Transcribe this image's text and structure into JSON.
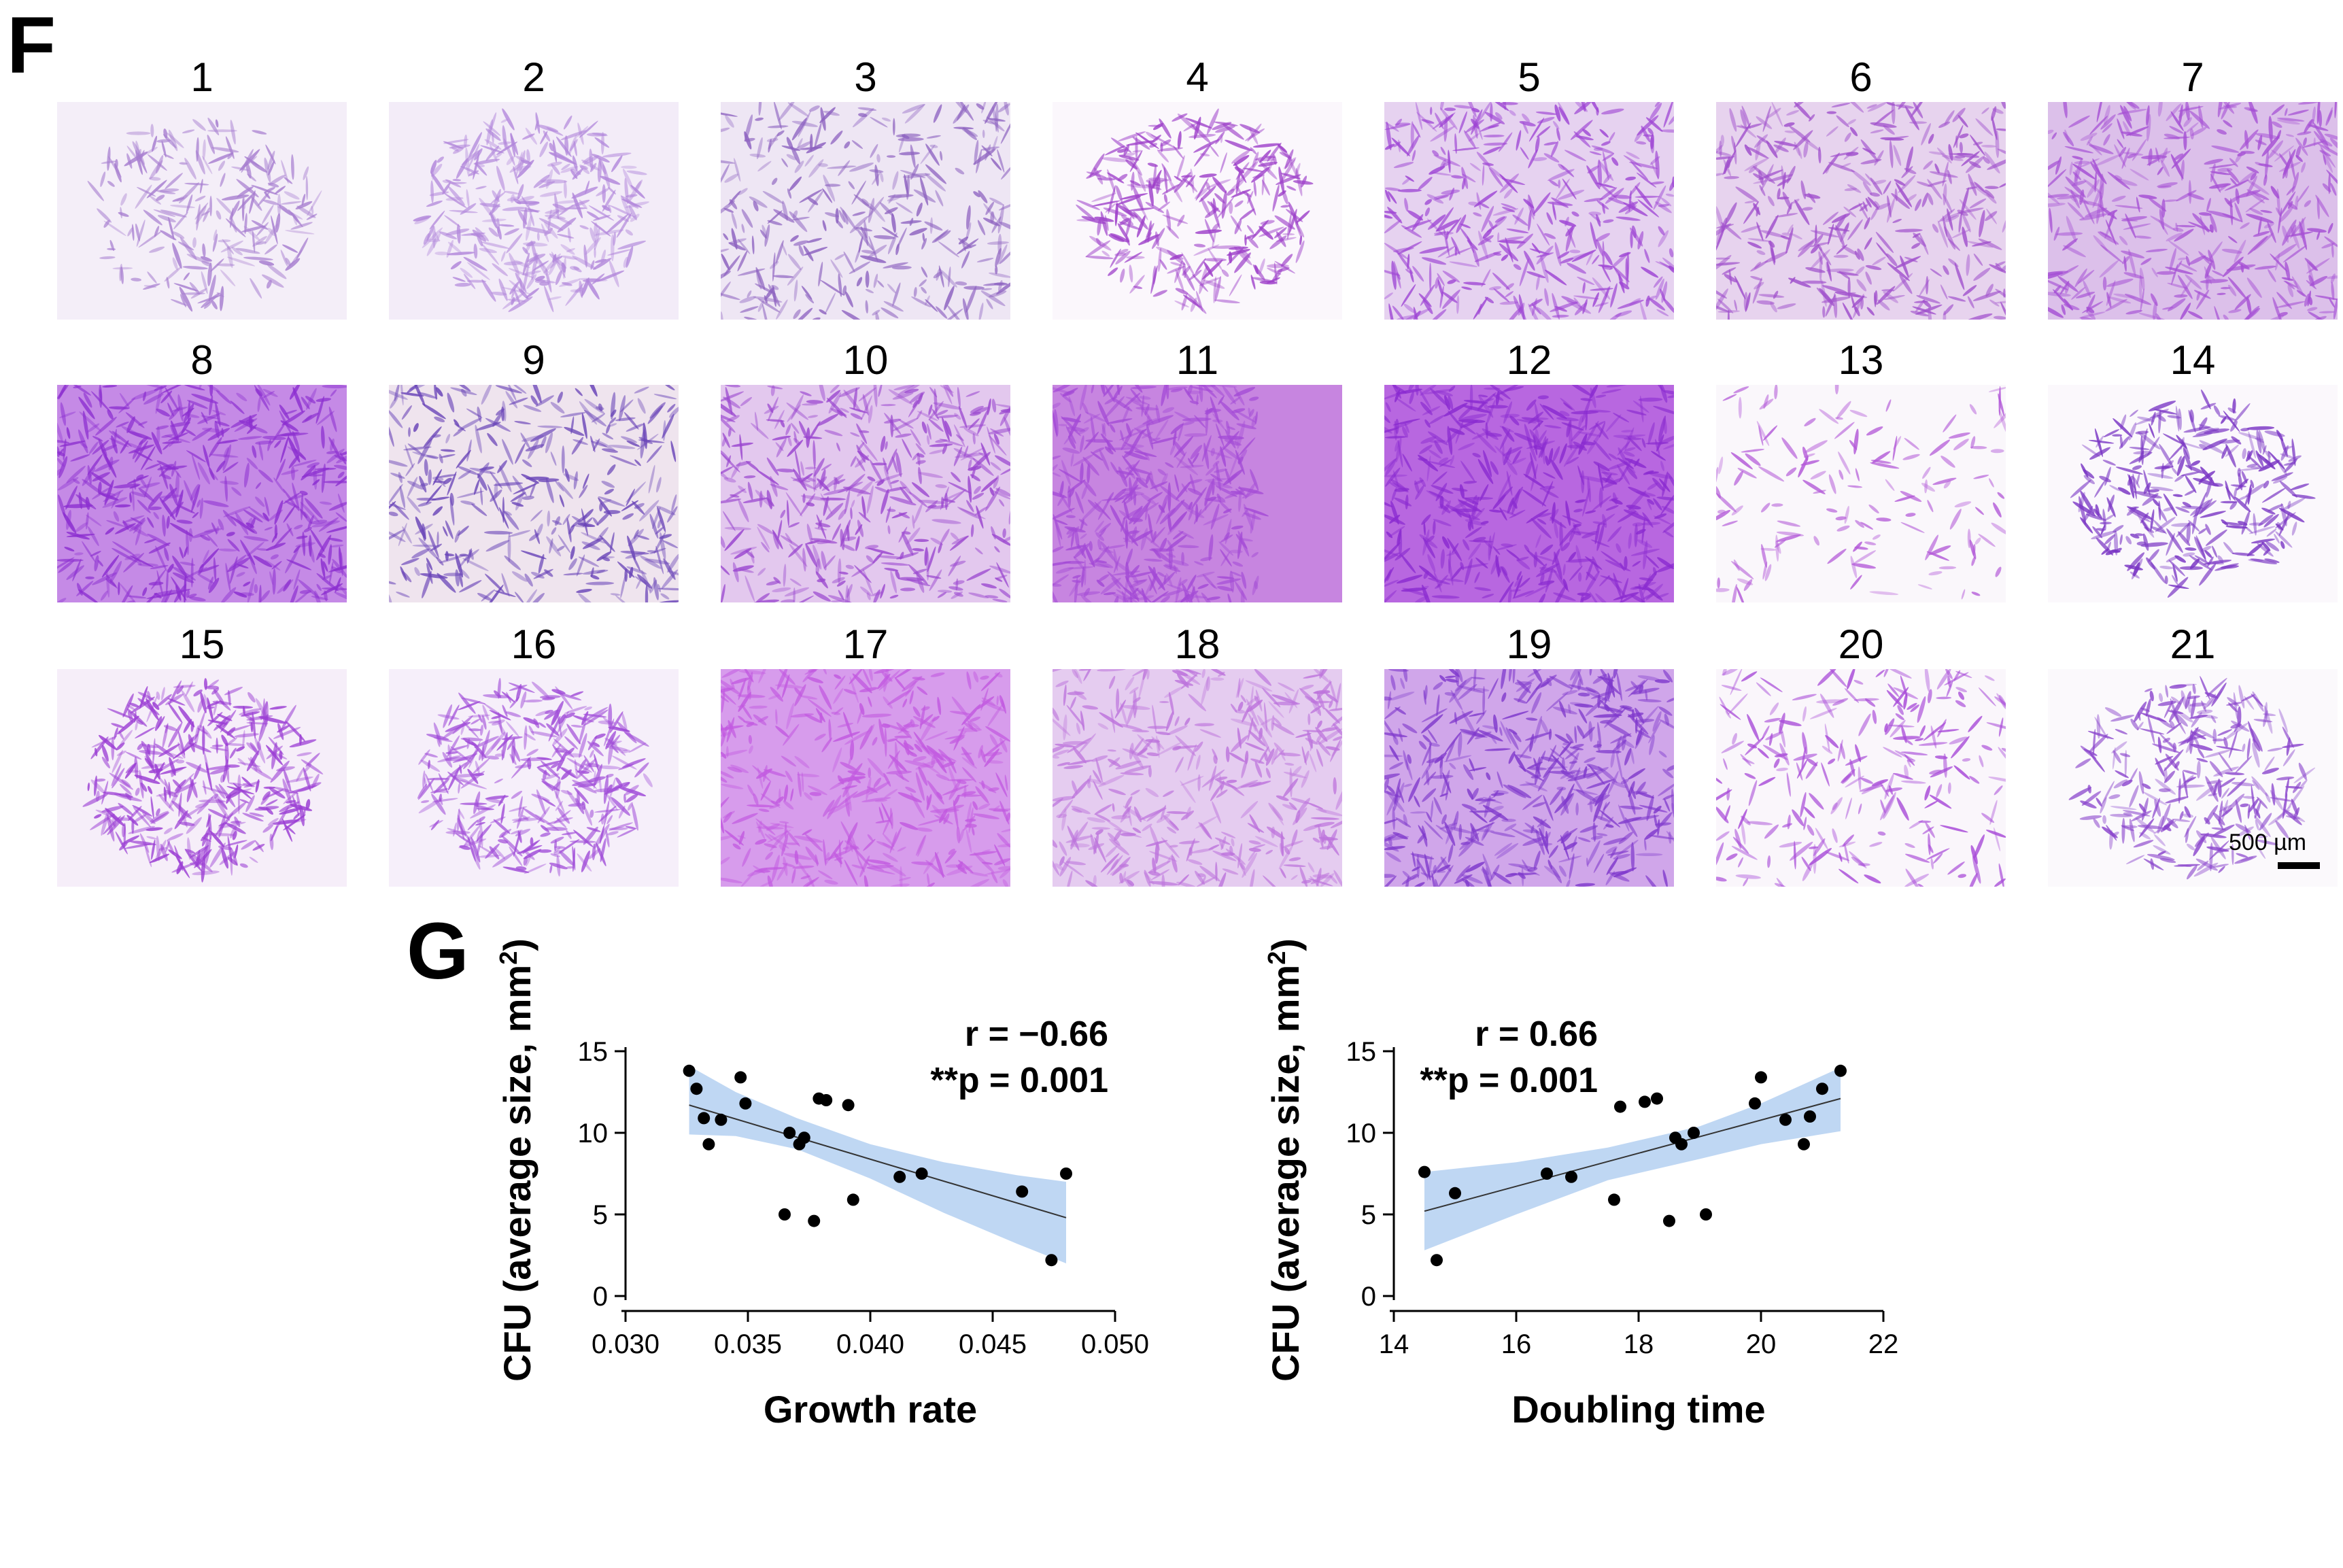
{
  "panel_f": {
    "letter": "F",
    "tiles": [
      {
        "label": "1",
        "bg": "#f4eef8",
        "color": "#a77ed0",
        "density": 0.35,
        "spread": "center"
      },
      {
        "label": "2",
        "bg": "#f3ecf8",
        "color": "#b287db",
        "density": 0.6,
        "spread": "center"
      },
      {
        "label": "3",
        "bg": "#eee6f4",
        "color": "#8d62c0",
        "density": 0.6,
        "spread": "full"
      },
      {
        "label": "4",
        "bg": "#fbf7fc",
        "color": "#9d3fc9",
        "density": 0.55,
        "spread": "center"
      },
      {
        "label": "5",
        "bg": "#e6d2f0",
        "color": "#9e45d4",
        "density": 0.8,
        "spread": "full"
      },
      {
        "label": "6",
        "bg": "#e7d3ee",
        "color": "#a050cc",
        "density": 0.75,
        "spread": "full"
      },
      {
        "label": "7",
        "bg": "#dcc0ea",
        "color": "#a54fd4",
        "density": 0.85,
        "spread": "full"
      },
      {
        "label": "8",
        "bg": "#c58ae6",
        "color": "#8c2fd0",
        "density": 1.0,
        "spread": "full"
      },
      {
        "label": "9",
        "bg": "#efe4ee",
        "color": "#6a45b8",
        "density": 0.7,
        "spread": "full"
      },
      {
        "label": "10",
        "bg": "#e3c8ee",
        "color": "#9a46cf",
        "density": 0.85,
        "spread": "full"
      },
      {
        "label": "11",
        "bg": "#c785e0",
        "color": "#a34ad6",
        "density": 0.9,
        "spread": "left"
      },
      {
        "label": "12",
        "bg": "#b867e0",
        "color": "#8a2bd0",
        "density": 1.0,
        "spread": "full"
      },
      {
        "label": "13",
        "bg": "#faf7fb",
        "color": "#b35ad8",
        "density": 0.15,
        "spread": "sparse"
      },
      {
        "label": "14",
        "bg": "#fbf8fc",
        "color": "#7a36c4",
        "density": 0.55,
        "spread": "center"
      },
      {
        "label": "15",
        "bg": "#f6eef9",
        "color": "#9b3ed4",
        "density": 0.75,
        "spread": "center"
      },
      {
        "label": "16",
        "bg": "#f6effa",
        "color": "#a04cd8",
        "density": 0.7,
        "spread": "center"
      },
      {
        "label": "17",
        "bg": "#d79cec",
        "color": "#c25ae0",
        "density": 0.85,
        "spread": "full"
      },
      {
        "label": "18",
        "bg": "#e5ccf0",
        "color": "#bd74dc",
        "density": 0.8,
        "spread": "full"
      },
      {
        "label": "19",
        "bg": "#d0a6ea",
        "color": "#7f39cc",
        "density": 0.95,
        "spread": "full"
      },
      {
        "label": "20",
        "bg": "#faf6fb",
        "color": "#a84bd8",
        "density": 0.4,
        "spread": "sparse"
      },
      {
        "label": "21",
        "bg": "#fbf9fc",
        "color": "#8a45cc",
        "density": 0.5,
        "spread": "center"
      }
    ],
    "scale_bar": "500 µm"
  },
  "panel_g": {
    "letter": "G"
  },
  "chart_data": [
    {
      "type": "scatter",
      "title": "",
      "xlabel": "Growth rate",
      "ylabel": "CFU (average size, mm",
      "ylabel_sup": "2",
      "ylabel_close": ")",
      "xlim": [
        0.03,
        0.05
      ],
      "ylim": [
        0,
        15
      ],
      "xticks": [
        "0.030",
        "0.035",
        "0.040",
        "0.045",
        "0.050"
      ],
      "xtick_values": [
        0.03,
        0.035,
        0.04,
        0.045,
        0.05
      ],
      "yticks": [
        "0",
        "5",
        "10",
        "15"
      ],
      "ytick_values": [
        0,
        5,
        10,
        15
      ],
      "annotation_r": "r = −0.66",
      "annotation_p": "**p = 0.001",
      "fit": {
        "x0": 0.0326,
        "y0": 11.7,
        "x1": 0.048,
        "y1": 4.8
      },
      "band_upper": [
        [
          0.0326,
          14.1
        ],
        [
          0.0345,
          12.5
        ],
        [
          0.037,
          10.9
        ],
        [
          0.04,
          9.3
        ],
        [
          0.043,
          8.2
        ],
        [
          0.046,
          7.4
        ],
        [
          0.048,
          7.0
        ]
      ],
      "band_lower": [
        [
          0.0326,
          9.9
        ],
        [
          0.0345,
          9.8
        ],
        [
          0.037,
          9.0
        ],
        [
          0.04,
          7.2
        ],
        [
          0.043,
          5.1
        ],
        [
          0.046,
          3.2
        ],
        [
          0.048,
          2.0
        ]
      ],
      "points": [
        [
          0.0326,
          13.8
        ],
        [
          0.0329,
          12.7
        ],
        [
          0.0332,
          10.9
        ],
        [
          0.0334,
          9.3
        ],
        [
          0.0339,
          10.8
        ],
        [
          0.0347,
          13.4
        ],
        [
          0.0349,
          11.8
        ],
        [
          0.0365,
          5.0
        ],
        [
          0.0367,
          10.0
        ],
        [
          0.0371,
          9.3
        ],
        [
          0.0373,
          9.7
        ],
        [
          0.0377,
          4.6
        ],
        [
          0.0379,
          12.1
        ],
        [
          0.0382,
          12.0
        ],
        [
          0.0391,
          11.7
        ],
        [
          0.0393,
          5.9
        ],
        [
          0.0412,
          7.3
        ],
        [
          0.0421,
          7.5
        ],
        [
          0.0462,
          6.4
        ],
        [
          0.0474,
          2.2
        ],
        [
          0.048,
          7.5
        ]
      ],
      "color_band": "#b8d3f2",
      "color_points": "#000000"
    },
    {
      "type": "scatter",
      "title": "",
      "xlabel": "Doubling time",
      "ylabel": "CFU (average size, mm",
      "ylabel_sup": "2",
      "ylabel_close": ")",
      "xlim": [
        14,
        22
      ],
      "ylim": [
        0,
        15
      ],
      "xticks": [
        "14",
        "16",
        "18",
        "20",
        "22"
      ],
      "xtick_values": [
        14,
        16,
        18,
        20,
        22
      ],
      "yticks": [
        "0",
        "5",
        "10",
        "15"
      ],
      "ytick_values": [
        0,
        5,
        10,
        15
      ],
      "annotation_r": "r = 0.66",
      "annotation_p": "**p = 0.001",
      "fit": {
        "x0": 14.5,
        "y0": 5.2,
        "x1": 21.3,
        "y1": 12.1
      },
      "band_upper": [
        [
          14.5,
          7.6
        ],
        [
          16,
          8.2
        ],
        [
          17.5,
          9.1
        ],
        [
          19,
          10.4
        ],
        [
          20,
          11.8
        ],
        [
          21.3,
          14.0
        ]
      ],
      "band_lower": [
        [
          14.5,
          2.8
        ],
        [
          16,
          5.0
        ],
        [
          17.5,
          7.1
        ],
        [
          19,
          8.4
        ],
        [
          20,
          9.3
        ],
        [
          21.3,
          10.1
        ]
      ],
      "points": [
        [
          14.5,
          7.6
        ],
        [
          14.7,
          2.2
        ],
        [
          15.0,
          6.3
        ],
        [
          16.5,
          7.5
        ],
        [
          16.9,
          7.3
        ],
        [
          17.6,
          5.9
        ],
        [
          17.7,
          11.6
        ],
        [
          18.1,
          11.9
        ],
        [
          18.3,
          12.1
        ],
        [
          18.5,
          4.6
        ],
        [
          18.6,
          9.7
        ],
        [
          18.7,
          9.3
        ],
        [
          18.9,
          10.0
        ],
        [
          19.1,
          5.0
        ],
        [
          19.9,
          11.8
        ],
        [
          20.0,
          13.4
        ],
        [
          20.4,
          10.8
        ],
        [
          20.7,
          9.3
        ],
        [
          20.8,
          11.0
        ],
        [
          21.0,
          12.7
        ],
        [
          21.3,
          13.8
        ]
      ],
      "color_band": "#b8d3f2",
      "color_points": "#000000"
    }
  ]
}
